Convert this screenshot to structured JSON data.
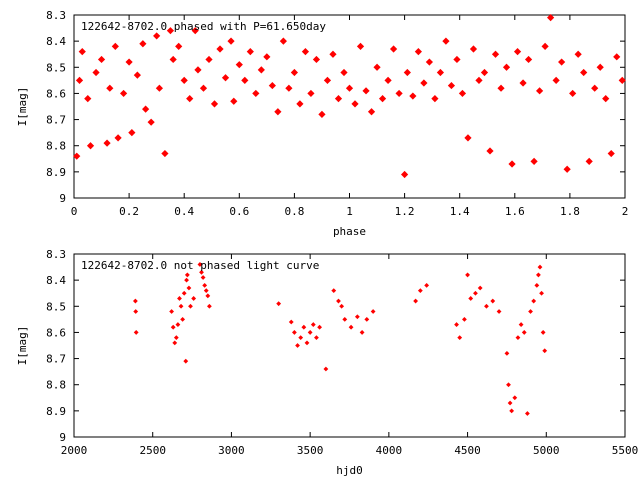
{
  "colors": {
    "point": "#ff0000",
    "axis": "#000000",
    "background": "#ffffff"
  },
  "chart_data": [
    {
      "type": "scatter",
      "title": "122642-8702.0 phased with P=61.650day",
      "xlabel": "phase",
      "ylabel": "I[mag]",
      "xlim": [
        0,
        2
      ],
      "ylim": [
        8.3,
        9
      ],
      "y_inverted": true,
      "grid": false,
      "legend": "none",
      "x_ticks": [
        "0",
        "0.2",
        "0.4",
        "0.6",
        "0.8",
        "1",
        "1.2",
        "1.4",
        "1.6",
        "1.8",
        "2"
      ],
      "y_ticks": [
        "8.3",
        "8.4",
        "8.5",
        "8.6",
        "8.7",
        "8.8",
        "8.9",
        "9"
      ],
      "series": [
        {
          "marker": "filled-diamond",
          "points": [
            [
              0.01,
              8.84
            ],
            [
              0.02,
              8.55
            ],
            [
              0.03,
              8.44
            ],
            [
              0.05,
              8.62
            ],
            [
              0.06,
              8.8
            ],
            [
              0.08,
              8.52
            ],
            [
              0.1,
              8.47
            ],
            [
              0.12,
              8.79
            ],
            [
              0.13,
              8.58
            ],
            [
              0.15,
              8.42
            ],
            [
              0.16,
              8.77
            ],
            [
              0.18,
              8.6
            ],
            [
              0.2,
              8.48
            ],
            [
              0.21,
              8.75
            ],
            [
              0.23,
              8.53
            ],
            [
              0.25,
              8.41
            ],
            [
              0.26,
              8.66
            ],
            [
              0.28,
              8.71
            ],
            [
              0.3,
              8.38
            ],
            [
              0.31,
              8.58
            ],
            [
              0.33,
              8.83
            ],
            [
              0.35,
              8.36
            ],
            [
              0.36,
              8.47
            ],
            [
              0.38,
              8.42
            ],
            [
              0.4,
              8.55
            ],
            [
              0.42,
              8.62
            ],
            [
              0.44,
              8.36
            ],
            [
              0.45,
              8.51
            ],
            [
              0.47,
              8.58
            ],
            [
              0.49,
              8.47
            ],
            [
              0.51,
              8.64
            ],
            [
              0.53,
              8.43
            ],
            [
              0.55,
              8.54
            ],
            [
              0.57,
              8.4
            ],
            [
              0.58,
              8.63
            ],
            [
              0.6,
              8.49
            ],
            [
              0.62,
              8.55
            ],
            [
              0.64,
              8.44
            ],
            [
              0.66,
              8.6
            ],
            [
              0.68,
              8.51
            ],
            [
              0.7,
              8.46
            ],
            [
              0.72,
              8.57
            ],
            [
              0.74,
              8.67
            ],
            [
              0.76,
              8.4
            ],
            [
              0.78,
              8.58
            ],
            [
              0.8,
              8.52
            ],
            [
              0.82,
              8.64
            ],
            [
              0.84,
              8.44
            ],
            [
              0.86,
              8.6
            ],
            [
              0.88,
              8.47
            ],
            [
              0.9,
              8.68
            ],
            [
              0.92,
              8.55
            ],
            [
              0.94,
              8.45
            ],
            [
              0.96,
              8.62
            ],
            [
              0.98,
              8.52
            ],
            [
              1.0,
              8.58
            ],
            [
              1.02,
              8.64
            ],
            [
              1.04,
              8.42
            ],
            [
              1.06,
              8.59
            ],
            [
              1.08,
              8.67
            ],
            [
              1.1,
              8.5
            ],
            [
              1.12,
              8.62
            ],
            [
              1.14,
              8.55
            ],
            [
              1.16,
              8.43
            ],
            [
              1.18,
              8.6
            ],
            [
              1.2,
              8.91
            ],
            [
              1.21,
              8.52
            ],
            [
              1.23,
              8.61
            ],
            [
              1.25,
              8.44
            ],
            [
              1.27,
              8.56
            ],
            [
              1.29,
              8.48
            ],
            [
              1.31,
              8.62
            ],
            [
              1.33,
              8.52
            ],
            [
              1.35,
              8.4
            ],
            [
              1.37,
              8.57
            ],
            [
              1.39,
              8.47
            ],
            [
              1.41,
              8.6
            ],
            [
              1.43,
              8.77
            ],
            [
              1.45,
              8.43
            ],
            [
              1.47,
              8.55
            ],
            [
              1.49,
              8.52
            ],
            [
              1.51,
              8.82
            ],
            [
              1.53,
              8.45
            ],
            [
              1.55,
              8.58
            ],
            [
              1.57,
              8.5
            ],
            [
              1.59,
              8.87
            ],
            [
              1.61,
              8.44
            ],
            [
              1.63,
              8.56
            ],
            [
              1.65,
              8.47
            ],
            [
              1.67,
              8.86
            ],
            [
              1.69,
              8.59
            ],
            [
              1.71,
              8.42
            ],
            [
              1.73,
              8.31
            ],
            [
              1.75,
              8.55
            ],
            [
              1.77,
              8.48
            ],
            [
              1.79,
              8.89
            ],
            [
              1.81,
              8.6
            ],
            [
              1.83,
              8.45
            ],
            [
              1.85,
              8.52
            ],
            [
              1.87,
              8.86
            ],
            [
              1.89,
              8.58
            ],
            [
              1.91,
              8.5
            ],
            [
              1.93,
              8.62
            ],
            [
              1.95,
              8.83
            ],
            [
              1.97,
              8.46
            ],
            [
              1.99,
              8.55
            ]
          ]
        }
      ]
    },
    {
      "type": "scatter",
      "title": "122642-8702.0 not phased light curve",
      "xlabel": "hjd0",
      "ylabel": "I[mag]",
      "xlim": [
        2000,
        5500
      ],
      "ylim": [
        8.3,
        9
      ],
      "y_inverted": true,
      "grid": false,
      "legend": "none",
      "x_ticks": [
        "2000",
        "2500",
        "3000",
        "3500",
        "4000",
        "4500",
        "5000",
        "5500"
      ],
      "y_ticks": [
        "8.3",
        "8.4",
        "8.5",
        "8.6",
        "8.7",
        "8.8",
        "8.9",
        "9"
      ],
      "series": [
        {
          "marker": "small-diamond",
          "points": [
            [
              2390,
              8.48
            ],
            [
              2392,
              8.52
            ],
            [
              2395,
              8.6
            ],
            [
              2620,
              8.52
            ],
            [
              2630,
              8.58
            ],
            [
              2640,
              8.64
            ],
            [
              2650,
              8.62
            ],
            [
              2660,
              8.57
            ],
            [
              2670,
              8.47
            ],
            [
              2680,
              8.5
            ],
            [
              2690,
              8.55
            ],
            [
              2700,
              8.45
            ],
            [
              2710,
              8.71
            ],
            [
              2715,
              8.4
            ],
            [
              2720,
              8.38
            ],
            [
              2730,
              8.43
            ],
            [
              2740,
              8.5
            ],
            [
              2760,
              8.47
            ],
            [
              2800,
              8.34
            ],
            [
              2810,
              8.37
            ],
            [
              2820,
              8.39
            ],
            [
              2830,
              8.42
            ],
            [
              2840,
              8.44
            ],
            [
              2850,
              8.46
            ],
            [
              2860,
              8.5
            ],
            [
              3300,
              8.49
            ],
            [
              3380,
              8.56
            ],
            [
              3400,
              8.6
            ],
            [
              3420,
              8.65
            ],
            [
              3440,
              8.62
            ],
            [
              3460,
              8.58
            ],
            [
              3480,
              8.64
            ],
            [
              3500,
              8.6
            ],
            [
              3520,
              8.57
            ],
            [
              3540,
              8.62
            ],
            [
              3560,
              8.58
            ],
            [
              3600,
              8.74
            ],
            [
              3650,
              8.44
            ],
            [
              3680,
              8.48
            ],
            [
              3700,
              8.5
            ],
            [
              3720,
              8.55
            ],
            [
              3760,
              8.58
            ],
            [
              3800,
              8.54
            ],
            [
              3830,
              8.6
            ],
            [
              3860,
              8.55
            ],
            [
              3900,
              8.52
            ],
            [
              4170,
              8.48
            ],
            [
              4200,
              8.44
            ],
            [
              4240,
              8.42
            ],
            [
              4430,
              8.57
            ],
            [
              4450,
              8.62
            ],
            [
              4480,
              8.55
            ],
            [
              4500,
              8.38
            ],
            [
              4520,
              8.47
            ],
            [
              4550,
              8.45
            ],
            [
              4580,
              8.43
            ],
            [
              4620,
              8.5
            ],
            [
              4660,
              8.48
            ],
            [
              4700,
              8.52
            ],
            [
              4750,
              8.68
            ],
            [
              4760,
              8.8
            ],
            [
              4770,
              8.87
            ],
            [
              4780,
              8.9
            ],
            [
              4800,
              8.85
            ],
            [
              4820,
              8.62
            ],
            [
              4840,
              8.57
            ],
            [
              4860,
              8.6
            ],
            [
              4880,
              8.91
            ],
            [
              4900,
              8.52
            ],
            [
              4920,
              8.48
            ],
            [
              4940,
              8.42
            ],
            [
              4950,
              8.38
            ],
            [
              4960,
              8.35
            ],
            [
              4970,
              8.45
            ],
            [
              4980,
              8.6
            ],
            [
              4990,
              8.67
            ]
          ]
        }
      ]
    }
  ]
}
